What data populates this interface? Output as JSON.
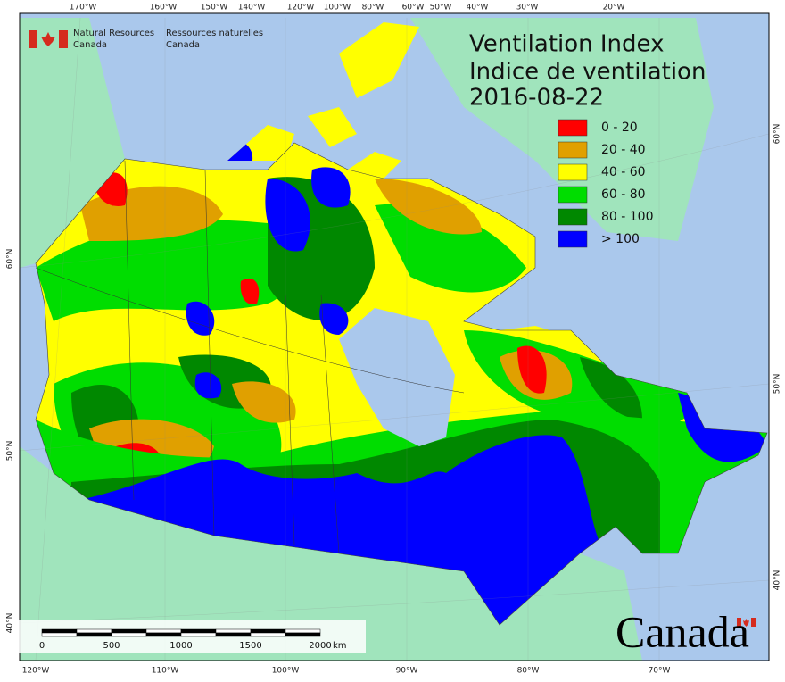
{
  "header": {
    "en_line1": "Natural Resources",
    "en_line2": "Canada",
    "fr_line1": "Ressources naturelles",
    "fr_line2": "Canada"
  },
  "title": {
    "en": "Ventilation Index",
    "fr": "Indice de ventilation",
    "date": "2016-08-22"
  },
  "legend": [
    {
      "label": "0 - 20",
      "color": "#ff0000"
    },
    {
      "label": "20 - 40",
      "color": "#e0a000"
    },
    {
      "label": "40 - 60",
      "color": "#ffff00"
    },
    {
      "label": "60 - 80",
      "color": "#00dd00"
    },
    {
      "label": "80 - 100",
      "color": "#008800"
    },
    {
      "label": "> 100",
      "color": "#0000ff"
    }
  ],
  "graticule": {
    "top": [
      "170°W",
      "160°W",
      "150°W",
      "140°W",
      "120°W",
      "100°W",
      "80°W",
      "60°W",
      "50°W",
      "40°W",
      "30°W",
      "20°W"
    ],
    "bottom": [
      "120°W",
      "110°W",
      "100°W",
      "90°W",
      "80°W",
      "70°W"
    ],
    "left": [
      "60°N",
      "50°N",
      "40°N"
    ],
    "right": [
      "60°N",
      "50°N",
      "40°N"
    ]
  },
  "scale_bar": {
    "ticks": [
      0,
      500,
      1000,
      1500,
      2000
    ],
    "unit": "km"
  },
  "wordmark": "Canada"
}
